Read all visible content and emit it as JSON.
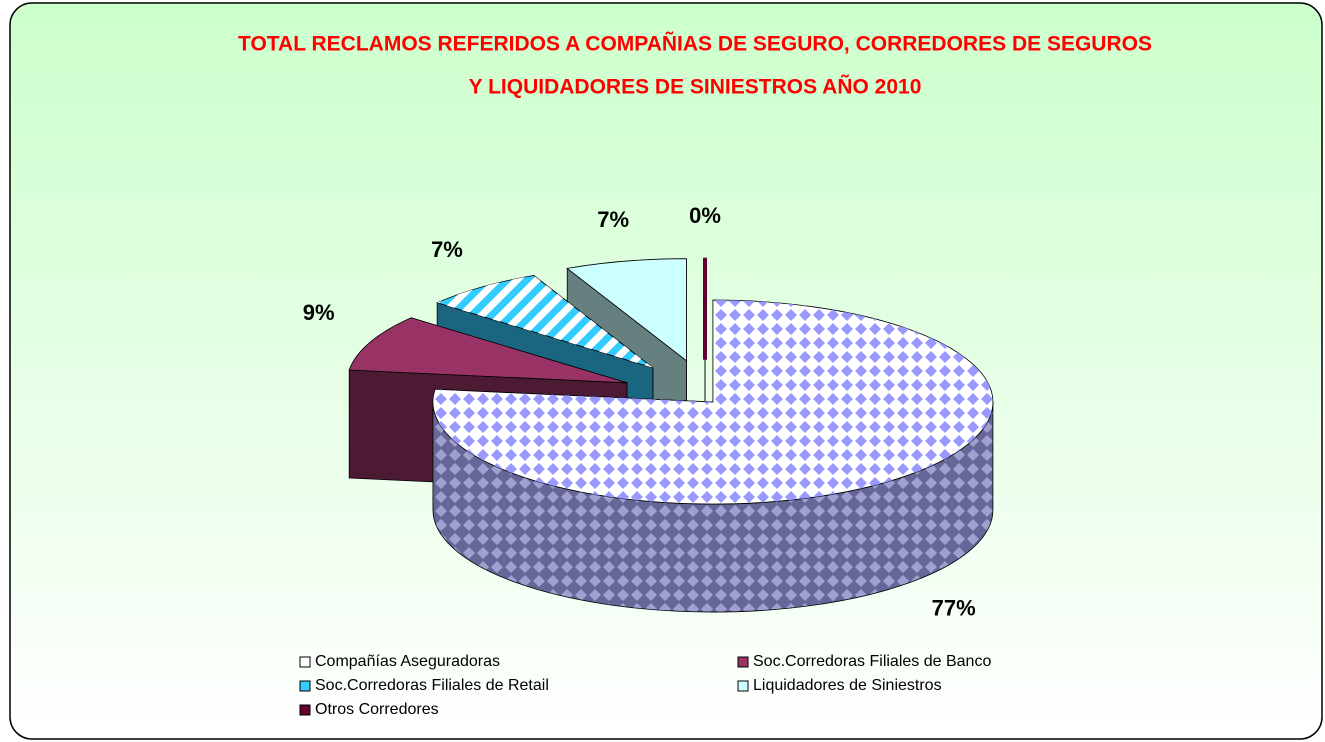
{
  "chart_data": {
    "type": "pie",
    "title": [
      "TOTAL RECLAMOS REFERIDOS A COMPAÑIAS DE SEGURO, CORREDORES DE SEGUROS",
      "Y LIQUIDADORES DE SINIESTROS AÑO 2010"
    ],
    "categories": [
      "Compañías Aseguradoras",
      "Soc.Corredoras Filiales de Banco",
      "Soc.Corredoras Filiales de Retail",
      "Liquidadores de Siniestros",
      "Otros Corredores"
    ],
    "values": [
      77,
      9,
      7,
      7,
      0
    ],
    "value_labels": [
      "77%",
      "9%",
      "7%",
      "7%",
      "0%"
    ],
    "colors": [
      "#ffffff",
      "#993366",
      "#33ccff",
      "#ccffff",
      "#660033"
    ],
    "legend": "bottom"
  }
}
